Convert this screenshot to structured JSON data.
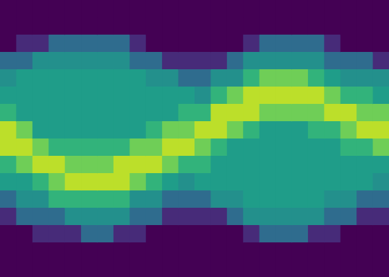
{
  "chart_data": {
    "type": "heatmap",
    "tick_labels": false,
    "color": "viridis",
    "value_range": [
      0,
      1
    ],
    "cells": [
      [
        0,
        0,
        0,
        0.35,
        0.5,
        0.55,
        0.65,
        0.9,
        0.9,
        0.65,
        0.55,
        0.35,
        0.12,
        0,
        0,
        0
      ],
      [
        0,
        0,
        0.12,
        0.35,
        0.55,
        0.55,
        0.55,
        0.78,
        0.9,
        0.78,
        0.55,
        0.5,
        0.35,
        0,
        0,
        0
      ],
      [
        0,
        0,
        0.12,
        0.5,
        0.55,
        0.55,
        0.55,
        0.55,
        0.78,
        0.9,
        0.65,
        0.5,
        0.35,
        0.12,
        0,
        0
      ],
      [
        0,
        0,
        0.35,
        0.5,
        0.55,
        0.55,
        0.55,
        0.55,
        0.65,
        0.9,
        0.78,
        0.65,
        0.35,
        0.12,
        0,
        0
      ],
      [
        0,
        0,
        0.35,
        0.5,
        0.55,
        0.55,
        0.55,
        0.55,
        0.65,
        0.78,
        0.9,
        0.65,
        0.5,
        0.12,
        0,
        0
      ],
      [
        0,
        0,
        0.35,
        0.5,
        0.55,
        0.55,
        0.55,
        0.55,
        0.65,
        0.78,
        0.9,
        0.65,
        0.5,
        0.35,
        0,
        0
      ],
      [
        0,
        0,
        0.35,
        0.5,
        0.55,
        0.55,
        0.55,
        0.55,
        0.65,
        0.78,
        0.9,
        0.65,
        0.5,
        0.35,
        0,
        0
      ],
      [
        0,
        0,
        0.35,
        0.5,
        0.55,
        0.55,
        0.55,
        0.55,
        0.65,
        0.9,
        0.9,
        0.65,
        0.5,
        0.12,
        0,
        0
      ],
      [
        0,
        0,
        0.12,
        0.35,
        0.55,
        0.55,
        0.55,
        0.55,
        0.78,
        0.9,
        0.78,
        0.5,
        0.35,
        0.12,
        0,
        0
      ],
      [
        0,
        0,
        0,
        0.35,
        0.5,
        0.55,
        0.55,
        0.65,
        0.78,
        0.9,
        0.65,
        0.5,
        0.35,
        0,
        0,
        0
      ],
      [
        0,
        0,
        0,
        0.12,
        0.5,
        0.55,
        0.55,
        0.78,
        0.9,
        0.78,
        0.55,
        0.35,
        0.12,
        0,
        0,
        0
      ],
      [
        0,
        0,
        0,
        0.12,
        0.35,
        0.55,
        0.65,
        0.78,
        0.9,
        0.65,
        0.5,
        0.35,
        0.12,
        0,
        0,
        0
      ],
      [
        0,
        0,
        0,
        0.12,
        0.35,
        0.5,
        0.65,
        0.9,
        0.78,
        0.65,
        0.55,
        0.35,
        0.12,
        0,
        0,
        0
      ],
      [
        0,
        0,
        0,
        0.12,
        0.5,
        0.65,
        0.9,
        0.9,
        0.65,
        0.55,
        0.55,
        0.5,
        0.12,
        0,
        0,
        0
      ],
      [
        0,
        0,
        0,
        0.35,
        0.5,
        0.78,
        0.9,
        0.78,
        0.55,
        0.55,
        0.55,
        0.5,
        0.35,
        0,
        0,
        0
      ],
      [
        0,
        0,
        0.12,
        0.5,
        0.65,
        0.9,
        0.9,
        0.65,
        0.55,
        0.55,
        0.55,
        0.55,
        0.5,
        0.12,
        0,
        0
      ],
      [
        0,
        0,
        0.35,
        0.5,
        0.78,
        0.9,
        0.78,
        0.55,
        0.55,
        0.55,
        0.55,
        0.55,
        0.5,
        0.35,
        0,
        0
      ],
      [
        0,
        0,
        0.35,
        0.5,
        0.78,
        0.9,
        0.78,
        0.55,
        0.55,
        0.55,
        0.55,
        0.55,
        0.5,
        0.35,
        0,
        0
      ],
      [
        0,
        0,
        0.35,
        0.5,
        0.78,
        0.9,
        0.78,
        0.55,
        0.55,
        0.55,
        0.55,
        0.55,
        0.5,
        0.35,
        0,
        0
      ],
      [
        0,
        0,
        0.35,
        0.5,
        0.65,
        0.9,
        0.78,
        0.65,
        0.55,
        0.55,
        0.55,
        0.55,
        0.5,
        0.12,
        0,
        0
      ],
      [
        0,
        0,
        0.12,
        0.35,
        0.55,
        0.78,
        0.9,
        0.65,
        0.55,
        0.55,
        0.55,
        0.5,
        0.35,
        0.12,
        0,
        0
      ],
      [
        0,
        0,
        0,
        0.35,
        0.5,
        0.65,
        0.9,
        0.78,
        0.65,
        0.55,
        0.55,
        0.5,
        0.35,
        0,
        0,
        0
      ],
      [
        0,
        0,
        0,
        0.35,
        0.5,
        0.65,
        0.78,
        0.9,
        0.65,
        0.55,
        0.55,
        0.35,
        0.12,
        0,
        0,
        0
      ],
      [
        0,
        0,
        0,
        0.12,
        0.5,
        0.55,
        0.78,
        0.9,
        0.78,
        0.55,
        0.5,
        0.35,
        0.12,
        0,
        0,
        0
      ]
    ]
  }
}
